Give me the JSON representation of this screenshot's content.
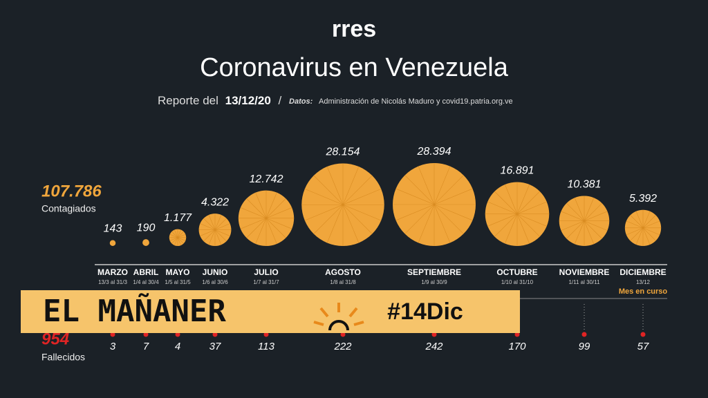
{
  "chart_data": {
    "type": "bubble",
    "logo": "rres",
    "title": "Coronavirus en Venezuela",
    "report_label": "Reporte del",
    "report_date": "13/12/20",
    "source_label": "Datos:",
    "source": "Administración de Nicolás Maduro y covid19.patria.org.ve",
    "categories": [
      "MARZO",
      "ABRIL",
      "MAYO",
      "JUNIO",
      "JULIO",
      "AGOSTO",
      "SEPTIEMBRE",
      "OCTUBRE",
      "NOVIEMBRE",
      "DICIEMBRE"
    ],
    "ranges": [
      "13/3 al 31/3",
      "1/4 al 30/4",
      "1/5 al 31/5",
      "1/6 al 30/6",
      "1/7 al 31/7",
      "1/8 al 31/8",
      "1/9 al 30/9",
      "1/10 al 31/10",
      "1/11 al 30/11",
      "13/12"
    ],
    "note": "Mes en curso",
    "series": [
      {
        "name": "Contagiados",
        "color": "#f0a63c",
        "total": 107786,
        "total_label": "107.786",
        "values": [
          143,
          190,
          1177,
          4322,
          12742,
          28154,
          28394,
          16891,
          10381,
          5392
        ],
        "value_labels": [
          "143",
          "190",
          "1.177",
          "4.322",
          "12.742",
          "28.154",
          "28.394",
          "16.891",
          "10.381",
          "5.392"
        ]
      },
      {
        "name": "Fallecidos",
        "color": "#e02424",
        "total": 954,
        "values": [
          3,
          7,
          4,
          37,
          113,
          222,
          242,
          170,
          99,
          57
        ]
      }
    ]
  },
  "banner": {
    "title": "EL MAÑANER",
    "tag": "#14Dic"
  }
}
